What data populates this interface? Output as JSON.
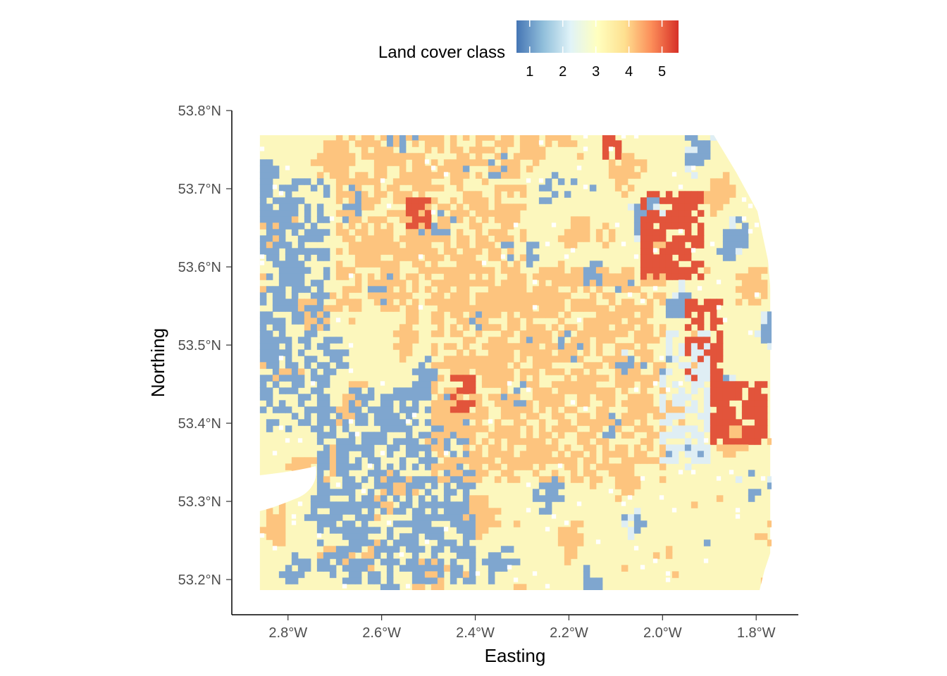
{
  "legend": {
    "title": "Land cover class",
    "ticks": [
      "1",
      "2",
      "3",
      "4",
      "5"
    ],
    "range": [
      0.6,
      5.5
    ],
    "palette": [
      "#4575b4",
      "#91bfdb",
      "#e0f3f8",
      "#ffffbf",
      "#fee090",
      "#fc8d59",
      "#d73027"
    ]
  },
  "axes": {
    "x_title": "Easting",
    "y_title": "Northing",
    "x_ticks": [
      "2.8°W",
      "2.6°W",
      "2.4°W",
      "2.2°W",
      "2.0°W",
      "1.8°W"
    ],
    "y_ticks": [
      "53.8°N",
      "53.7°N",
      "53.6°N",
      "53.5°N",
      "53.4°N",
      "53.3°N",
      "53.2°N"
    ]
  },
  "chart_data": {
    "type": "heatmap",
    "xlabel": "Easting",
    "ylabel": "Northing",
    "xlim": [
      -2.92,
      -1.71
    ],
    "ylim": [
      53.155,
      53.8
    ],
    "x_ticks": [
      -2.8,
      -2.6,
      -2.4,
      -2.2,
      -2.0,
      -1.8
    ],
    "y_ticks": [
      53.8,
      53.7,
      53.6,
      53.5,
      53.4,
      53.3,
      53.2
    ],
    "raster_extent": {
      "lon": [
        -2.86,
        -1.77
      ],
      "lat": [
        53.185,
        53.77
      ]
    },
    "legend_title": "Land cover class",
    "legend_position": "top",
    "class_colors": {
      "1": "#7fa6cf",
      "2": "#dfeef4",
      "3": "#fcf7bd",
      "4": "#fdc47e",
      "5": "#e2543b"
    },
    "regions": [
      {
        "class": 1,
        "lon": [
          -2.86,
          -2.72
        ],
        "lat": [
          53.42,
          53.72
        ]
      },
      {
        "class": 1,
        "lon": [
          -2.75,
          -2.4
        ],
        "lat": [
          53.2,
          53.45
        ]
      },
      {
        "class": 4,
        "lon": [
          -2.5,
          -2.0
        ],
        "lat": [
          53.33,
          53.6
        ]
      },
      {
        "class": 4,
        "lon": [
          -2.7,
          -2.3
        ],
        "lat": [
          53.55,
          53.77
        ]
      },
      {
        "class": 5,
        "lon": [
          -2.06,
          -1.92
        ],
        "lat": [
          53.59,
          53.7
        ]
      },
      {
        "class": 5,
        "lon": [
          -1.96,
          -1.88
        ],
        "lat": [
          53.46,
          53.56
        ]
      },
      {
        "class": 5,
        "lon": [
          -1.91,
          -1.78
        ],
        "lat": [
          53.38,
          53.46
        ]
      },
      {
        "class": 5,
        "lon": [
          -2.55,
          -2.5
        ],
        "lat": [
          53.65,
          53.69
        ]
      },
      {
        "class": 5,
        "lon": [
          -2.46,
          -2.4
        ],
        "lat": [
          53.42,
          53.47
        ]
      },
      {
        "class": 5,
        "lon": [
          -2.13,
          -2.1
        ],
        "lat": [
          53.74,
          53.77
        ]
      },
      {
        "class": 2,
        "lon": [
          -2.02,
          -1.9
        ],
        "lat": [
          53.35,
          53.52
        ]
      },
      {
        "class": 3,
        "lon": [
          -2.05,
          -1.77
        ],
        "lat": [
          53.185,
          53.35
        ]
      }
    ]
  }
}
